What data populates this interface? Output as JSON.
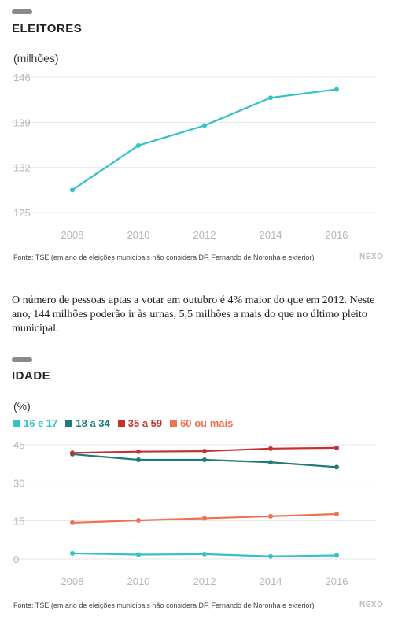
{
  "chart_data": [
    {
      "type": "line",
      "title": "ELEITORES",
      "unit_label": "(milhões)",
      "x": [
        "2008",
        "2010",
        "2012",
        "2014",
        "2016"
      ],
      "y_ticks": [
        "125",
        "132",
        "139",
        "146"
      ],
      "ylim": [
        125,
        146
      ],
      "grid": true,
      "series": [
        {
          "values": [
            128.5,
            135.4,
            138.5,
            142.8,
            144.1
          ],
          "color": "#33c3c7"
        }
      ],
      "source": "Fonte: TSE (em ano de eleições municipais não considera DF, Fernando de Noronha e exterior)",
      "brand": "NEXO"
    },
    {
      "type": "line",
      "title": "IDADE",
      "unit_label": "(%)",
      "x": [
        "2008",
        "2010",
        "2012",
        "2014",
        "2016"
      ],
      "y_ticks": [
        "0",
        "15",
        "30",
        "45"
      ],
      "ylim": [
        0,
        45
      ],
      "grid": true,
      "legend_position": "top-left",
      "series": [
        {
          "name": "16 e 17",
          "values": [
            2.2,
            1.7,
            1.9,
            1.0,
            1.4
          ],
          "color": "#33c3c7"
        },
        {
          "name": "18 a 34",
          "values": [
            41.3,
            39.1,
            39.1,
            38.1,
            36.2
          ],
          "color": "#1f7a78"
        },
        {
          "name": "35 a 59",
          "values": [
            41.8,
            42.3,
            42.5,
            43.5,
            43.8
          ],
          "color": "#c8302f"
        },
        {
          "name": "60 ou mais",
          "values": [
            14.3,
            15.2,
            16.0,
            16.8,
            17.7
          ],
          "color": "#ee7352"
        }
      ],
      "source": "Fonte: TSE (em ano de eleições municipais não considera DF, Fernando de Noronha e exterior)",
      "brand": "NEXO"
    }
  ],
  "paragraph": "O número de pessoas aptas a votar em outubro é 4% maior do que em 2012. Neste ano, 144 milhões poderão ir às urnas, 5,5 milhões a mais do que no último pleito municipal."
}
